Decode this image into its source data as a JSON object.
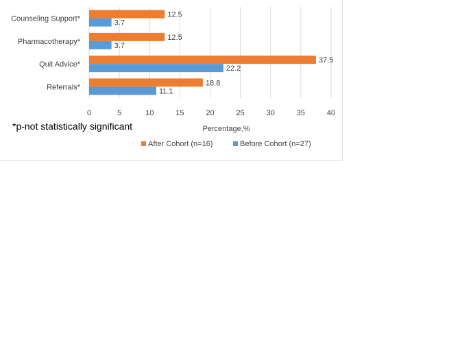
{
  "chart_data": {
    "type": "bar",
    "orientation": "horizontal",
    "categories": [
      "Counseling Support*",
      "Pharmacotherapy*",
      "Quit Advice*",
      "Referrals*"
    ],
    "series": [
      {
        "name": "After Cohort (n=16)",
        "color": "#ed7d31",
        "values": [
          12.5,
          12.5,
          37.5,
          18.8
        ]
      },
      {
        "name": "Before Cohort (n=27)",
        "color": "#5b9bd5",
        "values": [
          3.7,
          3.7,
          22.2,
          11.1
        ]
      }
    ],
    "data_labels": {
      "After Cohort (n=16)": [
        "12.5",
        "12.5",
        "37.5",
        "18.8"
      ],
      "Before Cohort (n=27)": [
        "3.7",
        "3.7",
        "22.2",
        "11.1"
      ]
    },
    "xlabel": "Percentage,%",
    "ylabel": "",
    "xlim": [
      0,
      40
    ],
    "xticks": [
      "0",
      "5",
      "10",
      "15",
      "20",
      "25",
      "30",
      "35",
      "40"
    ],
    "grid": "vertical",
    "legend": "bottom",
    "footnote": "*p-not statistically significant"
  }
}
